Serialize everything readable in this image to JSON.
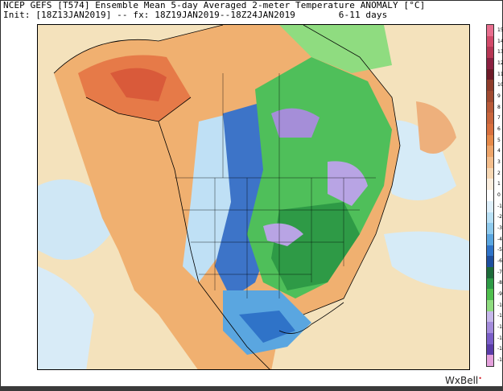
{
  "header": {
    "line1": "NCEP GEFS [T574] Ensemble Mean 5-day Averaged 2-meter Temperature ANOMALY [°C]",
    "line2": "Init: [18Z13JAN2019] -- fx: 18Z19JAN2019--18Z24JAN2019        6-11 days"
  },
  "brand": {
    "text": "WxBell",
    "dot": "•"
  },
  "colorbar": {
    "labels": [
      "15",
      "14",
      "13",
      "12",
      "11",
      "10",
      "9",
      "8",
      "7",
      "6",
      "5",
      "4",
      "3",
      "2",
      "1",
      "0",
      "-1",
      "-2",
      "-3",
      "-4",
      "-5",
      "-6",
      "-7",
      "-8",
      "-9",
      "-10",
      "-11",
      "-12",
      "-13",
      "-14",
      "-15"
    ],
    "colors": [
      "#e86e8e",
      "#d24a6a",
      "#b63654",
      "#8a2040",
      "#6e1a28",
      "#8e3c2a",
      "#a04a30",
      "#b85a38",
      "#c8653c",
      "#d8703e",
      "#e68a4a",
      "#eea56a",
      "#f4be8c",
      "#f7d8b4",
      "#fbeede",
      "#ffffff",
      "#dff0fb",
      "#b9e1f6",
      "#8fcbee",
      "#5aa6e0",
      "#2f73c8",
      "#1e4f9e",
      "#1d6b3a",
      "#2e9a46",
      "#4fbf4e",
      "#8fdc80",
      "#c6b8ea",
      "#a48cdc",
      "#7a5ec8",
      "#5a3ca8",
      "#e4a0dc"
    ]
  },
  "map": {
    "region": "North America",
    "colors": {
      "ocean_warm": "#f2d8a8",
      "ocean_cool": "#cfe7f5",
      "alaska_warm": "#e6804a",
      "west_warm": "#eea868",
      "rockies": "#c9e6f5",
      "plains_cold": "#3d74c8",
      "green_cold": "#4fbf5a",
      "purple_cold": "#a58ed8",
      "deep_green": "#2e9a46"
    }
  }
}
